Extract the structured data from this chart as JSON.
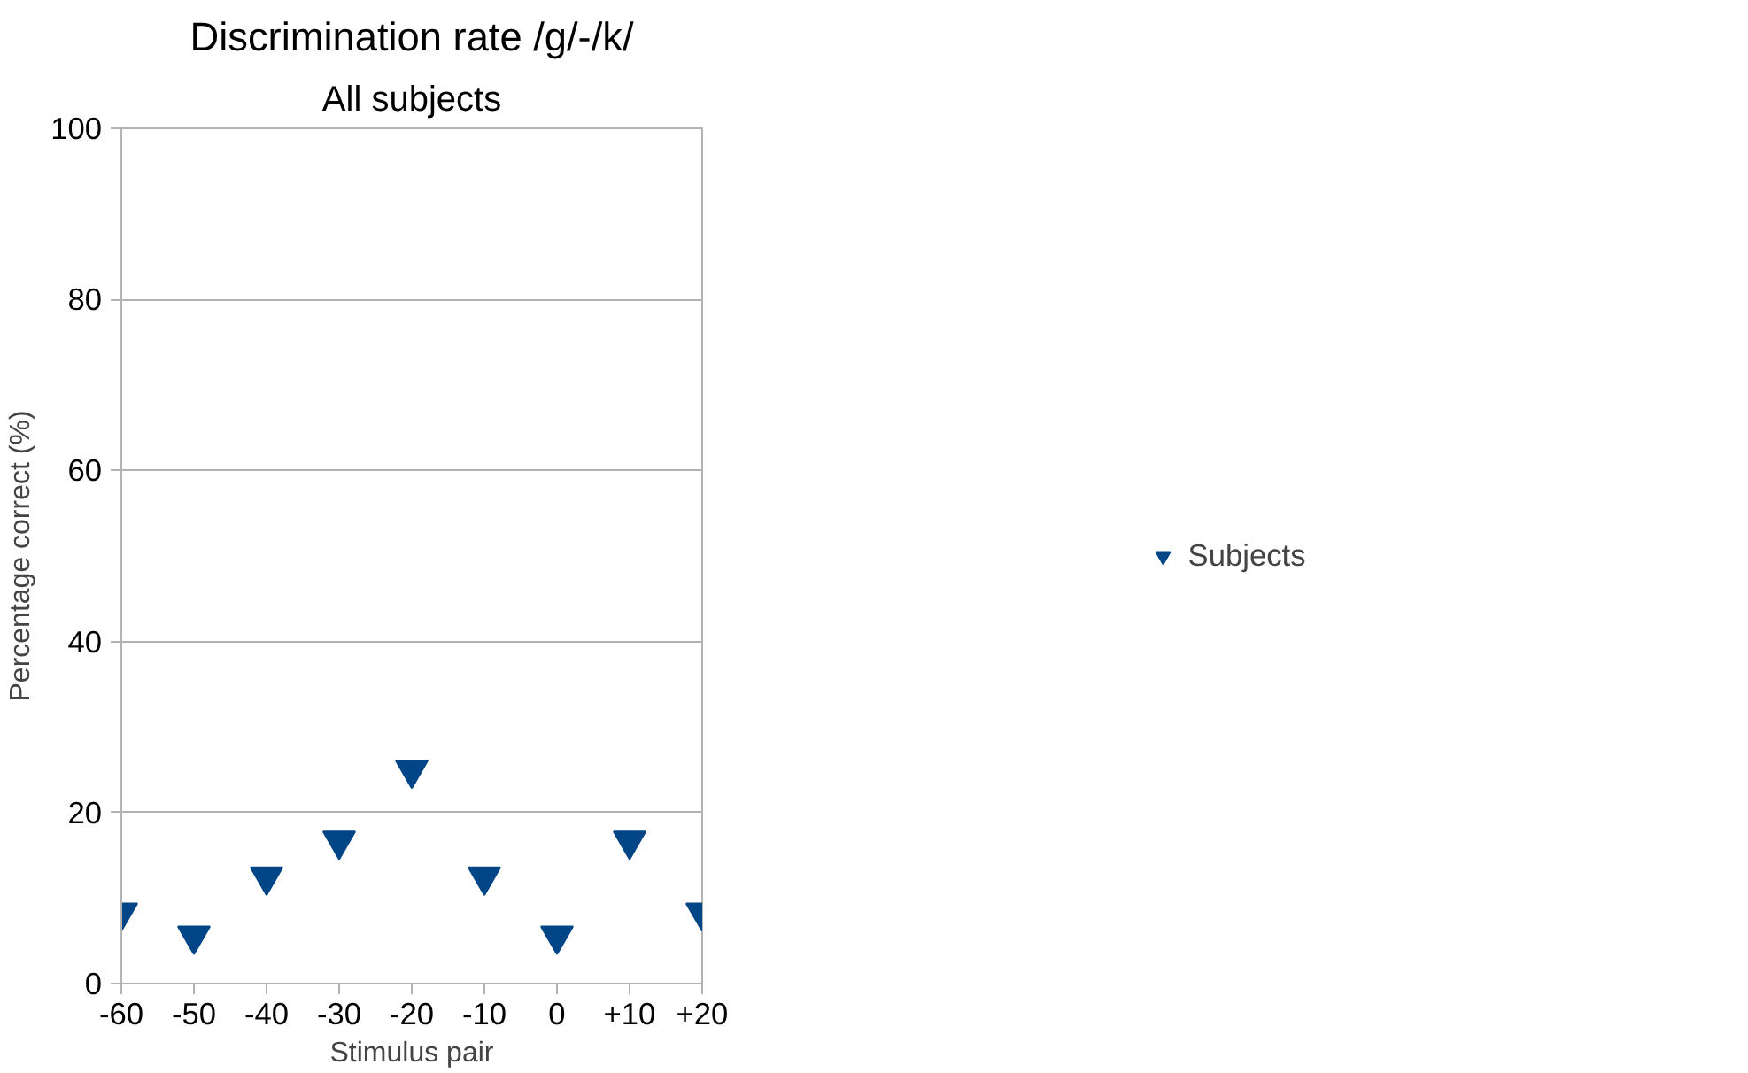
{
  "chart_data": {
    "type": "scatter",
    "title": "Discrimination rate /g/-/k/",
    "subtitle": "All subjects",
    "xlabel": "Stimulus pair",
    "ylabel": "Percentage correct (%)",
    "x": [
      -60,
      -50,
      -40,
      -30,
      -20,
      -10,
      0,
      10,
      20
    ],
    "series": [
      {
        "name": "Subjects",
        "color": "#004586",
        "values": [
          8.3,
          5.6,
          12.5,
          16.7,
          25,
          12.5,
          5.6,
          16.7,
          8.3
        ]
      }
    ],
    "xlim": [
      -60,
      20
    ],
    "ylim": [
      0,
      100
    ],
    "xticks": [
      -60,
      -50,
      -40,
      -30,
      -20,
      -10,
      0,
      {
        "value": 10,
        "label": "+10"
      },
      {
        "value": 20,
        "label": "+20"
      }
    ],
    "yticks": [
      0,
      20,
      40,
      60,
      80,
      100
    ],
    "grid": "y",
    "legend": "right",
    "marker": "triangle_down"
  }
}
